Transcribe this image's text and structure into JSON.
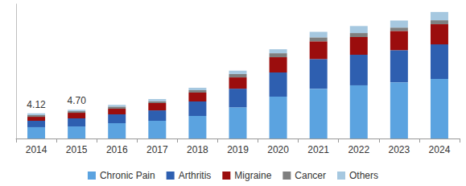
{
  "chart_data": {
    "type": "bar",
    "stacked": true,
    "orientation": "vertical",
    "categories": [
      "2014",
      "2015",
      "2016",
      "2017",
      "2018",
      "2019",
      "2020",
      "2021",
      "2022",
      "2023",
      "2024"
    ],
    "series": [
      {
        "name": "Chronic Pain",
        "color": "#5ba3e0",
        "values": [
          1.85,
          1.97,
          2.5,
          2.9,
          3.7,
          5.1,
          6.85,
          8.15,
          8.7,
          9.2,
          9.75
        ]
      },
      {
        "name": "Arthritis",
        "color": "#2e5fb0",
        "values": [
          1.05,
          1.32,
          1.45,
          1.7,
          2.35,
          3.05,
          3.95,
          4.85,
          5.0,
          5.25,
          5.65
        ]
      },
      {
        "name": "Migraine",
        "color": "#9b0d0d",
        "values": [
          0.65,
          0.92,
          0.92,
          1.2,
          1.45,
          1.85,
          2.5,
          2.9,
          2.9,
          3.15,
          3.3
        ]
      },
      {
        "name": "Cancer",
        "color": "#7f7f7f",
        "values": [
          0.27,
          0.26,
          0.35,
          0.3,
          0.4,
          0.55,
          0.65,
          0.65,
          0.65,
          0.55,
          0.65
        ]
      },
      {
        "name": "Others",
        "color": "#a6c8e0",
        "values": [
          0.3,
          0.23,
          0.28,
          0.35,
          0.4,
          0.55,
          0.65,
          0.9,
          1.15,
          1.15,
          1.35
        ]
      }
    ],
    "annotations": [
      {
        "x": "2014",
        "text": "4.12"
      },
      {
        "x": "2015",
        "text": "4.70"
      }
    ],
    "ylim": [
      0,
      22
    ],
    "tick_labels": "x",
    "grid": false,
    "legend": "bottom"
  }
}
